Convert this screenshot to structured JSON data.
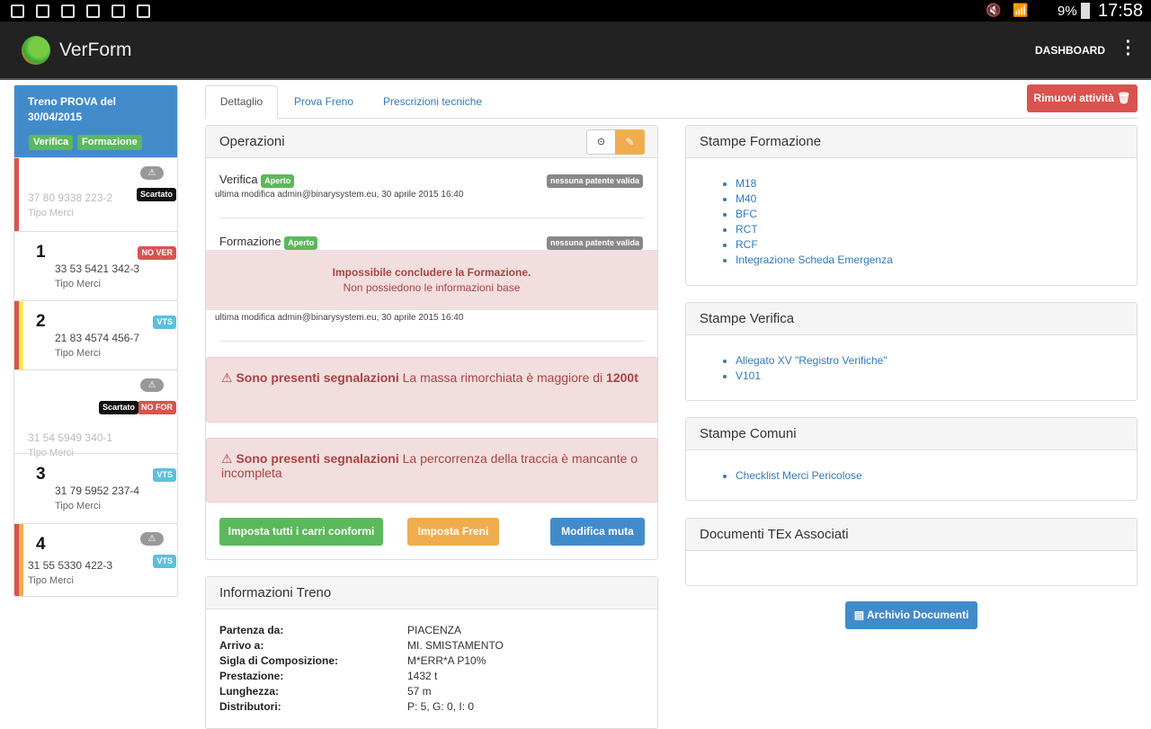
{
  "status_bar": {
    "battery": "9%",
    "time": "17:58"
  },
  "app": {
    "title": "VerForm",
    "dashboard": "DASHBOARD"
  },
  "train": {
    "title": "Treno PROVA del 30/04/2015",
    "tags": [
      "Verifica",
      "Formazione"
    ],
    "wagons": [
      {
        "num": "",
        "code": "37 80 9338 223-2",
        "type": "Tipo Merci",
        "badges": [
          "Scartato"
        ],
        "warning": true,
        "faded": true,
        "bars": [
          "#d9534f"
        ]
      },
      {
        "num": "1",
        "code": "33 53 5421 342-3",
        "type": "Tipo Merci",
        "badges": [
          "NO VER"
        ],
        "warning": false,
        "faded": false,
        "bars": []
      },
      {
        "num": "2",
        "code": "21 83 4574 456-7",
        "type": "Tipo Merci",
        "badges": [
          "VTS"
        ],
        "warning": false,
        "faded": false,
        "bars": [
          "#d9534f",
          "#ffee55"
        ]
      },
      {
        "num": "",
        "code": "31 54 5949 340-1",
        "type": "Tipo Merci",
        "badges": [
          "Scartato",
          "NO FOR"
        ],
        "warning": true,
        "faded": true,
        "bars": []
      },
      {
        "num": "3",
        "code": "31 79 5952 237-4",
        "type": "Tipo Merci",
        "badges": [
          "VTS"
        ],
        "warning": false,
        "faded": false,
        "bars": []
      },
      {
        "num": "4",
        "code": "31 55 5330 422-3",
        "type": "Tipo Merci",
        "badges": [
          "VTS"
        ],
        "warning": true,
        "faded": false,
        "bars": [
          "#d9534f",
          "#f0ad4e"
        ]
      }
    ]
  },
  "tabs": [
    "Dettaglio",
    "Prova Freno",
    "Prescrizioni tecniche"
  ],
  "remove_button": "Rimuovi attività 🗑",
  "operations": {
    "title": "Operazioni",
    "verifica": {
      "name": "Verifica",
      "status": "Aperto",
      "patente": "nessuna patente valida",
      "modified": "ultima modifica admin@binarysystem.eu, 30 aprile 2015 16:40"
    },
    "formazione": {
      "name": "Formazione",
      "status": "Aperto",
      "patente": "nessuna patente valida",
      "modified": "ultima modifica admin@binarysystem.eu, 30 aprile 2015 16:40",
      "error_title": "Impossibile concludere la Formazione.",
      "error_text": "Non possiedono le informazioni base"
    },
    "alerts": [
      {
        "strong": "Sono presenti segnalazioni",
        "text": " La massa rimorchiata è maggiore di ",
        "bold_end": "1200t"
      },
      {
        "strong": "Sono presenti segnalazioni",
        "text": " La percorrenza della traccia è mancante o incompleta",
        "bold_end": ""
      }
    ],
    "buttons": {
      "conformi": "Imposta tutti i carri conformi",
      "freni": "Imposta Freni",
      "muta": "Modifica muta"
    }
  },
  "info": {
    "title": "Informazioni Treno",
    "rows": [
      {
        "label": "Partenza da:",
        "value": "PIACENZA"
      },
      {
        "label": "Arrivo a:",
        "value": "MI. SMISTAMENTO"
      },
      {
        "label": "Sigla di Composizione:",
        "value": "M*ERR*A P10%"
      },
      {
        "label": "Prestazione:",
        "value": "1432 t"
      },
      {
        "label": "Lunghezza:",
        "value": "57 m"
      },
      {
        "label": "Distributori:",
        "value": "P: 5, G: 0, I: 0"
      }
    ]
  },
  "stampe_formazione": {
    "title": "Stampe Formazione",
    "links": [
      "M18",
      "M40",
      "BFC",
      "RCT",
      "RCF",
      "Integrazione Scheda Emergenza"
    ]
  },
  "stampe_verifica": {
    "title": "Stampe Verifica",
    "links": [
      "Allegato XV \"Registro Verifiche\"",
      "V101"
    ]
  },
  "stampe_comuni": {
    "title": "Stampe Comuni",
    "links": [
      "Checklist Merci Pericolose"
    ]
  },
  "documenti": {
    "title": "Documenti TEx Associati",
    "archive_button": "Archivio Documenti"
  }
}
